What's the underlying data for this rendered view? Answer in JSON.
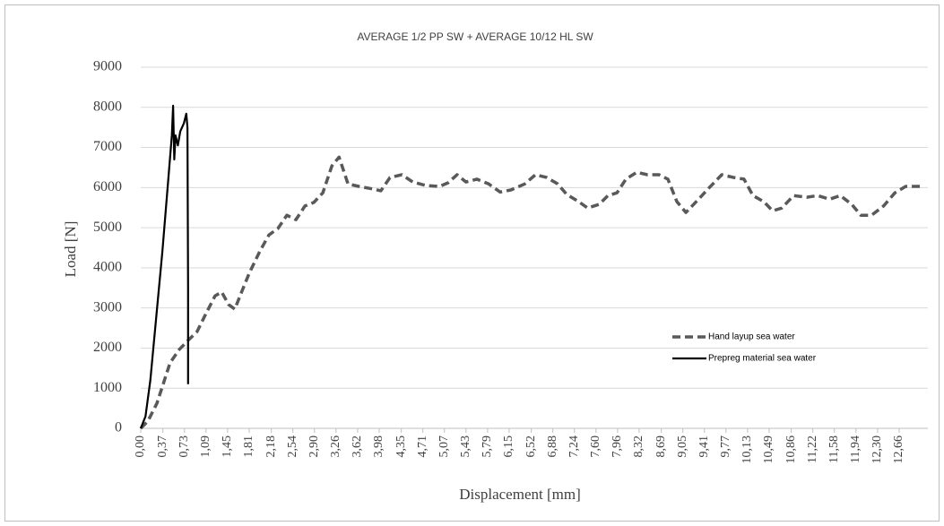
{
  "chart_data": {
    "type": "line",
    "title": "AVERAGE 1/2 PP SW + AVERAGE 10/12 HL SW",
    "x_label": "Displacement [mm]",
    "y_label": "Load [N]",
    "xlim": [
      0,
      13.14
    ],
    "ylim": [
      0,
      9000
    ],
    "yticks": [
      0,
      1000,
      2000,
      3000,
      4000,
      5000,
      6000,
      7000,
      8000,
      9000
    ],
    "xticks": [
      {
        "value": 0.0,
        "label": "0,00"
      },
      {
        "value": 0.37,
        "label": "0,37"
      },
      {
        "value": 0.73,
        "label": "0,73"
      },
      {
        "value": 1.09,
        "label": "1,09"
      },
      {
        "value": 1.45,
        "label": "1,45"
      },
      {
        "value": 1.81,
        "label": "1,81"
      },
      {
        "value": 2.18,
        "label": "2,18"
      },
      {
        "value": 2.54,
        "label": "2,54"
      },
      {
        "value": 2.9,
        "label": "2,90"
      },
      {
        "value": 3.26,
        "label": "3,26"
      },
      {
        "value": 3.62,
        "label": "3,62"
      },
      {
        "value": 3.98,
        "label": "3,98"
      },
      {
        "value": 4.35,
        "label": "4,35"
      },
      {
        "value": 4.71,
        "label": "4,71"
      },
      {
        "value": 5.07,
        "label": "5,07"
      },
      {
        "value": 5.43,
        "label": "5,43"
      },
      {
        "value": 5.79,
        "label": "5,79"
      },
      {
        "value": 6.15,
        "label": "6,15"
      },
      {
        "value": 6.52,
        "label": "6,52"
      },
      {
        "value": 6.88,
        "label": "6,88"
      },
      {
        "value": 7.24,
        "label": "7,24"
      },
      {
        "value": 7.6,
        "label": "7,60"
      },
      {
        "value": 7.96,
        "label": "7,96"
      },
      {
        "value": 8.32,
        "label": "8,32"
      },
      {
        "value": 8.69,
        "label": "8,69"
      },
      {
        "value": 9.05,
        "label": "9,05"
      },
      {
        "value": 9.41,
        "label": "9,41"
      },
      {
        "value": 9.77,
        "label": "9,77"
      },
      {
        "value": 10.13,
        "label": "10,13"
      },
      {
        "value": 10.49,
        "label": "10,49"
      },
      {
        "value": 10.86,
        "label": "10,86"
      },
      {
        "value": 11.22,
        "label": "11,22"
      },
      {
        "value": 11.58,
        "label": "11,58"
      },
      {
        "value": 11.94,
        "label": "11,94"
      },
      {
        "value": 12.3,
        "label": "12,30"
      },
      {
        "value": 12.66,
        "label": "12,66"
      }
    ],
    "grid": true,
    "legend": "center-right",
    "series": [
      {
        "name": "Hand layup sea water",
        "color": "#595959",
        "style": "dashed",
        "x": [
          0,
          0.12,
          0.27,
          0.49,
          0.64,
          0.79,
          0.94,
          1.09,
          1.24,
          1.35,
          1.47,
          1.57,
          1.69,
          1.81,
          1.99,
          2.14,
          2.29,
          2.44,
          2.59,
          2.74,
          2.89,
          3.04,
          3.19,
          3.31,
          3.46,
          3.64,
          3.82,
          4.01,
          4.16,
          4.36,
          4.54,
          4.76,
          4.99,
          5.13,
          5.28,
          5.43,
          5.61,
          5.81,
          6.0,
          6.18,
          6.41,
          6.59,
          6.78,
          6.96,
          7.11,
          7.31,
          7.46,
          7.65,
          7.8,
          7.95,
          8.1,
          8.28,
          8.46,
          8.65,
          8.8,
          8.95,
          9.1,
          9.3,
          9.48,
          9.7,
          9.9,
          10.07,
          10.22,
          10.4,
          10.55,
          10.7,
          10.9,
          11.12,
          11.3,
          11.5,
          11.68,
          11.87,
          12.02,
          12.2,
          12.4,
          12.59,
          12.77,
          13.07
        ],
        "values": [
          0,
          180,
          620,
          1630,
          1960,
          2190,
          2410,
          2860,
          3300,
          3400,
          3080,
          2970,
          3420,
          3860,
          4420,
          4820,
          4980,
          5310,
          5200,
          5540,
          5630,
          5870,
          6540,
          6760,
          6090,
          6030,
          5980,
          5920,
          6250,
          6320,
          6140,
          6050,
          6030,
          6120,
          6320,
          6140,
          6210,
          6090,
          5890,
          5940,
          6090,
          6320,
          6250,
          6090,
          5830,
          5650,
          5490,
          5580,
          5800,
          5870,
          6210,
          6380,
          6320,
          6320,
          6210,
          5650,
          5380,
          5690,
          5980,
          6320,
          6250,
          6210,
          5800,
          5650,
          5420,
          5490,
          5800,
          5760,
          5800,
          5710,
          5800,
          5580,
          5310,
          5310,
          5540,
          5870,
          6030,
          6030
        ]
      },
      {
        "name": "Prepreg material sea water",
        "color": "#000000",
        "style": "solid",
        "x": [
          0,
          0.08,
          0.16,
          0.26,
          0.36,
          0.46,
          0.52,
          0.54,
          0.56,
          0.58,
          0.62,
          0.66,
          0.72,
          0.76,
          0.78,
          0.79,
          0.79
        ],
        "values": [
          0,
          300,
          1200,
          2800,
          4400,
          6200,
          7300,
          8040,
          6700,
          7300,
          7050,
          7400,
          7600,
          7840,
          7500,
          3500,
          1100
        ]
      }
    ]
  }
}
